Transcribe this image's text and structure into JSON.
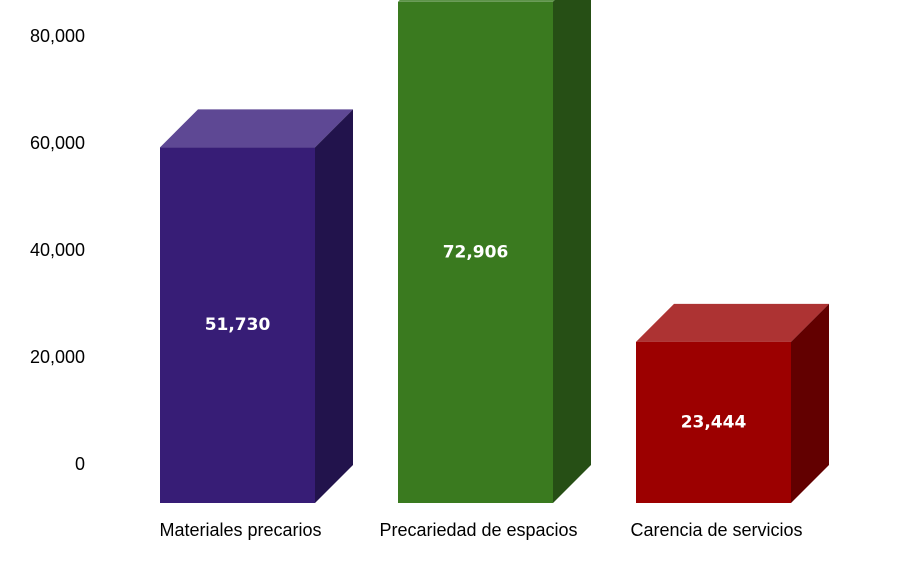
{
  "chart_data": {
    "type": "bar",
    "style": "3d-column",
    "categories": [
      "Materiales precarios",
      "Precariedad de espacios",
      "Carencia de servicios"
    ],
    "values": [
      51730,
      72906,
      23444
    ],
    "data_labels": [
      "51,730",
      "72,906",
      "23,444"
    ],
    "ylim": [
      0,
      80000
    ],
    "yticks": [
      0,
      20000,
      40000,
      60000,
      80000
    ],
    "ytick_labels": [
      "0",
      "20,000",
      "40,000",
      "60,000",
      "80,000"
    ],
    "grid": false,
    "legend": "none",
    "colors": [
      {
        "front": "#371D76",
        "top": "#5E4894",
        "side": "#22134C"
      },
      {
        "front": "#3A7A1F",
        "top": "#5E944A",
        "side": "#264F15"
      },
      {
        "front": "#9C0000",
        "top": "#AD3333",
        "side": "#620000"
      }
    ]
  }
}
